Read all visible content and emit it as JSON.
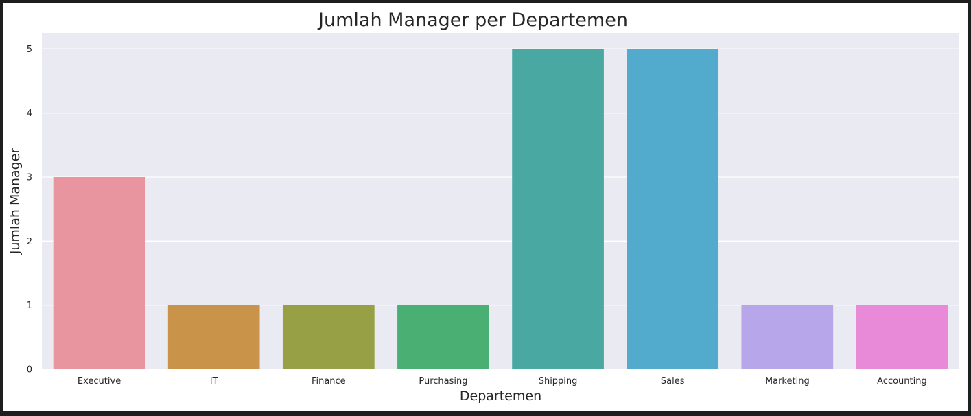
{
  "chart_data": {
    "type": "bar",
    "title": "Jumlah Manager per Departemen",
    "xlabel": "Departemen",
    "ylabel": "Jumlah Manager",
    "categories": [
      "Executive",
      "IT",
      "Finance",
      "Purchasing",
      "Shipping",
      "Sales",
      "Marketing",
      "Accounting"
    ],
    "values": [
      3,
      1,
      1,
      1,
      5,
      5,
      1,
      1
    ],
    "colors": [
      "#e8959f",
      "#c9944a",
      "#97a044",
      "#4aaf72",
      "#4aa8a2",
      "#52aacd",
      "#b7a6ea",
      "#e88ad7"
    ],
    "yticks": [
      0,
      1,
      2,
      3,
      4,
      5
    ],
    "ylim": [
      0,
      5.25
    ],
    "grid": true,
    "plot_background": "#eaeaf2",
    "grid_color": "#ffffff"
  }
}
